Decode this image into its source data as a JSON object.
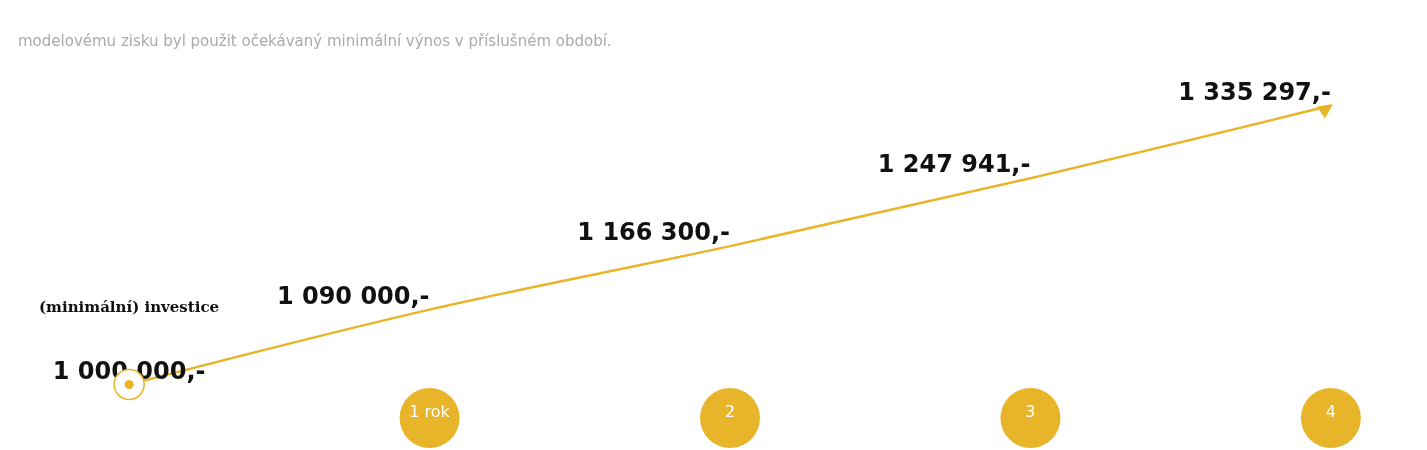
{
  "chart_data": {
    "type": "line",
    "categories": [
      null,
      "1 rok",
      "2",
      "3",
      "4"
    ],
    "series": [
      {
        "color": "#e8b52a",
        "values": [
          1000000,
          1090000,
          1166300,
          1247941,
          1335297
        ],
        "value_labels": [
          "1 000 000,-",
          "1 090 000,-",
          "1 166 300,-",
          "1 247 941,-",
          "1 335 297,-"
        ]
      }
    ],
    "tick_labels": "x",
    "grid": false,
    "legend": false,
    "marker": "none",
    "line_style": "solid",
    "annotations": [
      "modelovému zisku byl použit očekávaný minimální výnos v příslušném období.",
      "(minimální) investice"
    ]
  }
}
